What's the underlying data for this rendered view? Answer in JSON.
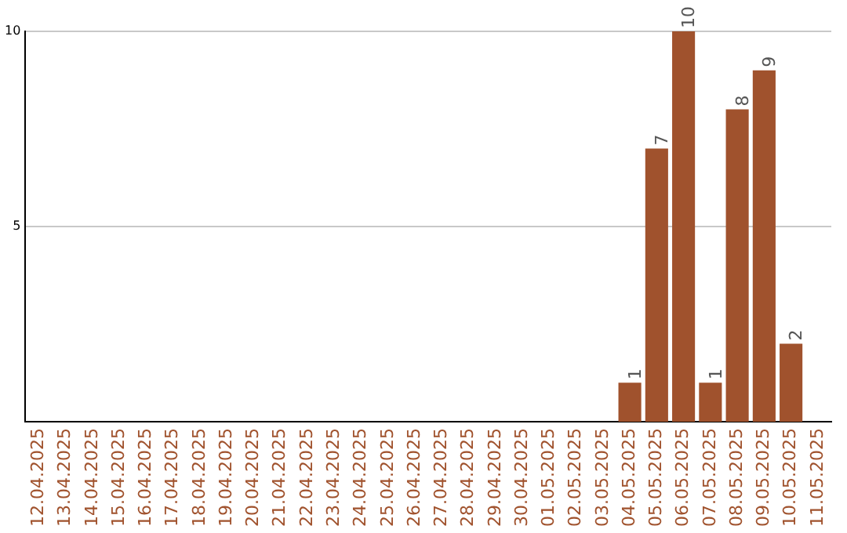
{
  "chart_data": {
    "type": "bar",
    "categories": [
      "12.04.2025",
      "13.04.2025",
      "14.04.2025",
      "15.04.2025",
      "16.04.2025",
      "17.04.2025",
      "18.04.2025",
      "19.04.2025",
      "20.04.2025",
      "21.04.2025",
      "22.04.2025",
      "23.04.2025",
      "24.04.2025",
      "25.04.2025",
      "26.04.2025",
      "27.04.2025",
      "28.04.2025",
      "29.04.2025",
      "30.04.2025",
      "01.05.2025",
      "02.05.2025",
      "03.05.2025",
      "04.05.2025",
      "05.05.2025",
      "06.05.2025",
      "07.05.2025",
      "08.05.2025",
      "09.05.2025",
      "10.05.2025",
      "11.05.2025"
    ],
    "values": [
      0,
      0,
      0,
      0,
      0,
      0,
      0,
      0,
      0,
      0,
      0,
      0,
      0,
      0,
      0,
      0,
      0,
      0,
      0,
      0,
      0,
      0,
      1,
      7,
      10,
      1,
      8,
      9,
      2,
      0
    ],
    "value_labels": [
      null,
      null,
      null,
      null,
      null,
      null,
      null,
      null,
      null,
      null,
      null,
      null,
      null,
      null,
      null,
      null,
      null,
      null,
      null,
      null,
      null,
      null,
      "1",
      "7",
      "10",
      "1",
      "8",
      "9",
      "2",
      null
    ],
    "color": "#a0522d",
    "ylim": [
      0,
      10
    ],
    "yticks": [
      5,
      10
    ],
    "grid": "y",
    "legend": false
  }
}
